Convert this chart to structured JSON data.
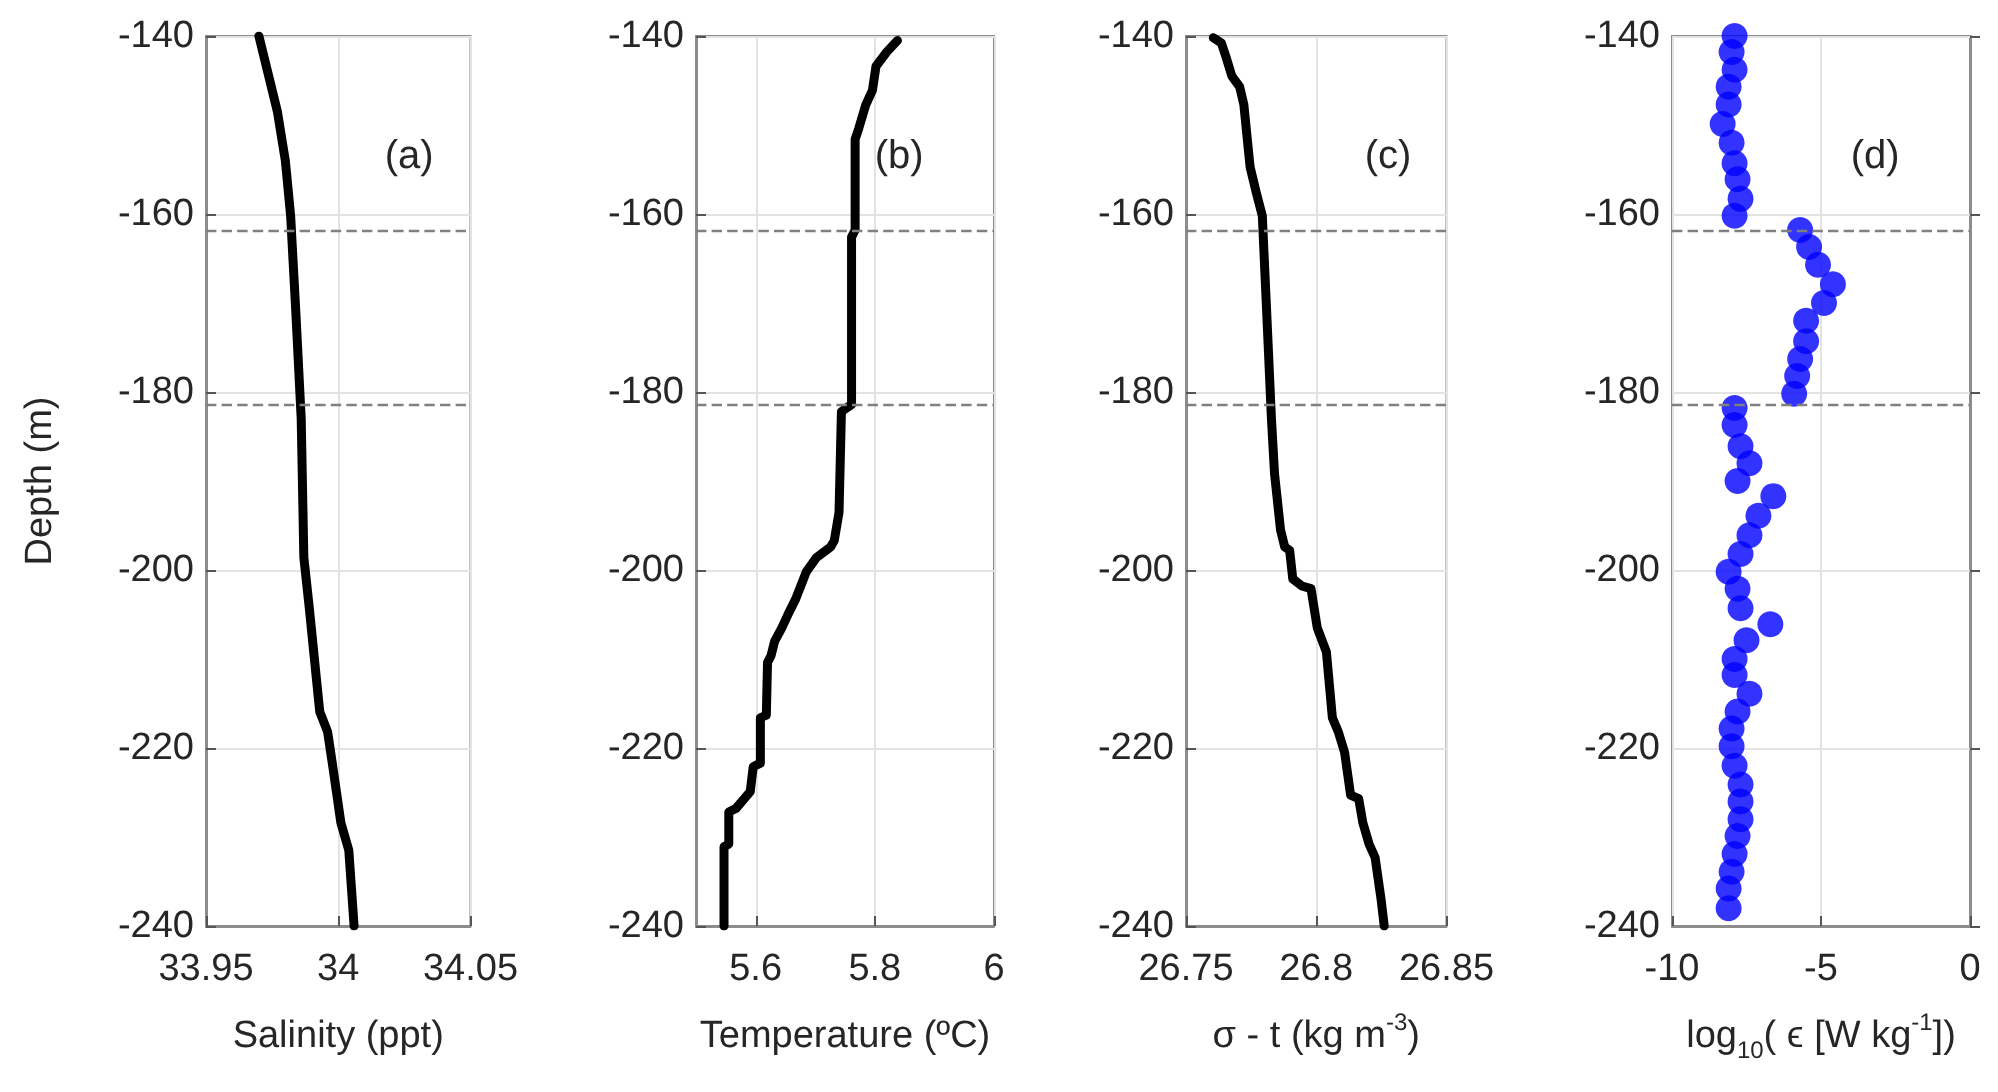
{
  "chart_data": [
    {
      "type": "line",
      "xlabel": "Salinity (ppt)",
      "ylabel": "Depth (m)",
      "annotations": [
        "(a)"
      ],
      "marker": "none",
      "grid": true,
      "xlim": [
        33.95,
        34.05
      ],
      "xticks": [
        33.95,
        34,
        34.05
      ],
      "ylim": [
        -240,
        -140
      ],
      "yticks": [
        -140,
        -160,
        -180,
        -200,
        -220,
        -240
      ],
      "ref_lines": [
        {
          "axis": "y",
          "value": -161.8,
          "color": "#808080",
          "line_style": "dashed"
        },
        {
          "axis": "y",
          "value": -181.4,
          "color": "#808080",
          "line_style": "dashed"
        }
      ],
      "series": [
        {
          "color": "#000000",
          "x": [
            33.97,
            33.977,
            33.98,
            33.982,
            33.984,
            33.986,
            33.987,
            33.989,
            33.993,
            33.996,
            33.998,
            34.001,
            34.004,
            34.006
          ],
          "values": [
            -140,
            -148.5,
            -154,
            -160.2,
            -171.2,
            -183,
            -198.6,
            -204.1,
            -215.9,
            -218.2,
            -222.2,
            -228.4,
            -231.5,
            -240
          ]
        }
      ]
    },
    {
      "type": "line",
      "xlabel": "Temperature (ºC)",
      "annotations": [
        "(b)"
      ],
      "marker": "none",
      "grid": true,
      "xlim": [
        5.5,
        6
      ],
      "xticks": [
        5.6,
        5.8,
        6
      ],
      "ylim": [
        -240,
        -140
      ],
      "yticks": [
        -140,
        -160,
        -180,
        -200,
        -220,
        -240
      ],
      "ref_lines": [
        {
          "axis": "y",
          "value": -161.8,
          "color": "#808080",
          "line_style": "dashed"
        },
        {
          "axis": "y",
          "value": -181.4,
          "color": "#808080",
          "line_style": "dashed"
        }
      ],
      "series": [
        {
          "color": "#000000",
          "x": [
            5.838,
            5.82,
            5.802,
            5.796,
            5.785,
            5.773,
            5.767,
            5.767,
            5.761,
            5.761,
            5.744,
            5.74,
            5.732,
            5.726,
            5.702,
            5.685,
            5.667,
            5.655,
            5.644,
            5.632,
            5.626,
            5.62,
            5.618,
            5.608,
            5.608,
            5.596,
            5.591,
            5.567,
            5.555,
            5.555,
            5.547,
            5.547
          ],
          "values": [
            -140.5,
            -141.8,
            -143.4,
            -146.1,
            -147.7,
            -150.4,
            -151.6,
            -161.8,
            -162.6,
            -181.4,
            -182.2,
            -193.5,
            -196.7,
            -197.4,
            -198.6,
            -200.2,
            -203.3,
            -204.9,
            -206.5,
            -208,
            -209.6,
            -210.4,
            -216.3,
            -216.6,
            -221.7,
            -222.1,
            -224.9,
            -226.8,
            -227.2,
            -230.8,
            -231.1,
            -240
          ]
        }
      ]
    },
    {
      "type": "line",
      "xlabel": "σ - t (kg m$^{-3}$)",
      "annotations": [
        "(c)"
      ],
      "marker": "none",
      "grid": true,
      "xlim": [
        26.75,
        26.85
      ],
      "xticks": [
        26.75,
        26.8,
        26.85
      ],
      "ylim": [
        -240,
        -140
      ],
      "yticks": [
        -140,
        -160,
        -180,
        -200,
        -220,
        -240
      ],
      "ref_lines": [
        {
          "axis": "y",
          "value": -161.8,
          "color": "#808080",
          "line_style": "dashed"
        },
        {
          "axis": "y",
          "value": -181.4,
          "color": "#808080",
          "line_style": "dashed"
        }
      ],
      "series": [
        {
          "color": "#000000",
          "x": [
            26.7605,
            26.7636,
            26.7652,
            26.7676,
            26.7706,
            26.7722,
            26.7746,
            26.7769,
            26.7793,
            26.7804,
            26.7816,
            26.7828,
            26.784,
            26.7863,
            26.7879,
            26.7898,
            26.791,
            26.7945,
            26.798,
            26.8004,
            26.8039,
            26.8062,
            26.8085,
            26.8109,
            26.8132,
            26.8163,
            26.8179,
            26.8203,
            26.8226,
            26.8249,
            26.8261
          ],
          "values": [
            -140.2,
            -140.8,
            -142.2,
            -144.5,
            -145.7,
            -147.7,
            -154.7,
            -157.5,
            -160.2,
            -167.3,
            -175.1,
            -183,
            -189.2,
            -195.5,
            -197.4,
            -197.8,
            -201,
            -201.8,
            -202.1,
            -206.5,
            -209.2,
            -216.6,
            -218.2,
            -220.5,
            -225.3,
            -225.7,
            -228.4,
            -230.8,
            -232.3,
            -237,
            -240
          ]
        }
      ]
    },
    {
      "type": "scatter",
      "xlabel": "log$_{10}$( ϵ [W kg$^{-1}$])",
      "annotations": [
        "(d)"
      ],
      "marker": "circle",
      "grid": true,
      "xlim": [
        -10,
        0
      ],
      "xticks": [
        -10,
        -5,
        0
      ],
      "ylim": [
        -240,
        -140
      ],
      "yticks": [
        -140,
        -160,
        -180,
        -200,
        -220,
        -240
      ],
      "ref_lines": [
        {
          "axis": "y",
          "value": -161.8,
          "color": "#808080",
          "line_style": "dashed"
        },
        {
          "axis": "y",
          "value": -181.4,
          "color": "#808080",
          "line_style": "dashed"
        }
      ],
      "series": [
        {
          "color": "#0000ff",
          "x": [
            -7.9,
            -8.0,
            -7.9,
            -8.1,
            -8.1,
            -8.3,
            -8.0,
            -7.9,
            -7.8,
            -7.7,
            -7.9,
            -5.7,
            -5.4,
            -5.1,
            -4.6,
            -4.9,
            -5.5,
            -5.5,
            -5.7,
            -5.8,
            -5.9,
            -7.9,
            -7.9,
            -7.7,
            -7.4,
            -7.8,
            -6.6,
            -7.1,
            -7.4,
            -7.7,
            -8.1,
            -7.8,
            -7.7,
            -6.7,
            -7.5,
            -7.9,
            -7.9,
            -7.4,
            -7.8,
            -8.0,
            -8.0,
            -7.9,
            -7.7,
            -7.7,
            -7.7,
            -7.8,
            -7.9,
            -8.0,
            -8.1,
            -8.1
          ],
          "values": [
            -140,
            -141.8,
            -143.8,
            -145.7,
            -147.7,
            -149.9,
            -152,
            -154.3,
            -156.1,
            -158.3,
            -160.2,
            -161.8,
            -163.7,
            -165.7,
            -167.9,
            -170,
            -172,
            -174.3,
            -176.3,
            -178.2,
            -180.2,
            -181.8,
            -183.7,
            -186.1,
            -188,
            -190,
            -191.7,
            -193.9,
            -196.1,
            -198.2,
            -200.2,
            -202.1,
            -204.3,
            -206.1,
            -207.9,
            -210,
            -211.8,
            -213.9,
            -215.9,
            -217.8,
            -219.8,
            -222,
            -224.1,
            -226,
            -228,
            -229.9,
            -231.9,
            -233.9,
            -235.8,
            -238
          ]
        }
      ]
    }
  ]
}
